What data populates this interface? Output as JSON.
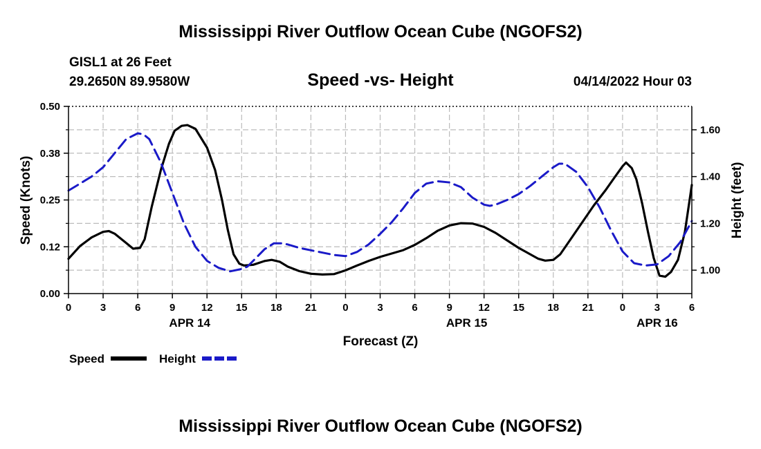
{
  "title": "Mississippi River Outflow Ocean Cube (NGOFS2)",
  "station": "GISL1 at 26 Feet",
  "coords": "29.2650N  89.9580W",
  "datetime": "04/14/2022 Hour 03",
  "footer_title": "Mississippi River Outflow Ocean Cube (NGOFS2)",
  "legend": {
    "speed": "Speed",
    "height": "Height"
  },
  "chart_data": {
    "type": "line",
    "title": "Speed -vs- Height",
    "xlabel": "Forecast (Z)",
    "ylabel": "Speed (Knots)",
    "y2label": "Height (feet)",
    "xlim": [
      0,
      54
    ],
    "ylim": [
      0,
      0.5
    ],
    "y2lim": [
      0.9,
      1.7
    ],
    "grid": true,
    "x_ticks": [
      {
        "x": 0,
        "label": "0"
      },
      {
        "x": 3,
        "label": "3"
      },
      {
        "x": 6,
        "label": "6"
      },
      {
        "x": 9,
        "label": "9"
      },
      {
        "x": 12,
        "label": "12"
      },
      {
        "x": 15,
        "label": "15"
      },
      {
        "x": 18,
        "label": "18"
      },
      {
        "x": 21,
        "label": "21"
      },
      {
        "x": 24,
        "label": "0"
      },
      {
        "x": 27,
        "label": "3"
      },
      {
        "x": 30,
        "label": "6"
      },
      {
        "x": 33,
        "label": "9"
      },
      {
        "x": 36,
        "label": "12"
      },
      {
        "x": 39,
        "label": "15"
      },
      {
        "x": 42,
        "label": "18"
      },
      {
        "x": 45,
        "label": "21"
      },
      {
        "x": 48,
        "label": "0"
      },
      {
        "x": 51,
        "label": "3"
      },
      {
        "x": 54,
        "label": "6"
      }
    ],
    "date_labels": [
      {
        "x": 10.5,
        "label": "APR 14"
      },
      {
        "x": 34.5,
        "label": "APR 15"
      },
      {
        "x": 51,
        "label": "APR 16"
      }
    ],
    "y_ticks": [
      {
        "v": 0.0,
        "label": "0.00"
      },
      {
        "v": 0.125,
        "label": "0.12"
      },
      {
        "v": 0.25,
        "label": "0.25"
      },
      {
        "v": 0.375,
        "label": "0.38"
      },
      {
        "v": 0.5,
        "label": "0.50"
      }
    ],
    "y2_ticks": [
      {
        "v": 1.0,
        "label": "1.00"
      },
      {
        "v": 1.2,
        "label": "1.20"
      },
      {
        "v": 1.4,
        "label": "1.40"
      },
      {
        "v": 1.6,
        "label": "1.60"
      }
    ],
    "series": [
      {
        "name": "Speed",
        "color": "#000000",
        "axis": "left",
        "dash": "none",
        "points": [
          [
            0,
            0.093
          ],
          [
            1,
            0.127
          ],
          [
            2,
            0.15
          ],
          [
            3,
            0.165
          ],
          [
            3.5,
            0.167
          ],
          [
            4,
            0.16
          ],
          [
            5,
            0.135
          ],
          [
            5.6,
            0.12
          ],
          [
            6.2,
            0.122
          ],
          [
            6.6,
            0.145
          ],
          [
            7.2,
            0.23
          ],
          [
            8,
            0.33
          ],
          [
            8.7,
            0.4
          ],
          [
            9.2,
            0.435
          ],
          [
            9.8,
            0.448
          ],
          [
            10.3,
            0.45
          ],
          [
            11,
            0.44
          ],
          [
            12,
            0.39
          ],
          [
            12.7,
            0.33
          ],
          [
            13.3,
            0.25
          ],
          [
            13.8,
            0.17
          ],
          [
            14.3,
            0.105
          ],
          [
            14.8,
            0.08
          ],
          [
            15.2,
            0.075
          ],
          [
            16,
            0.077
          ],
          [
            17,
            0.087
          ],
          [
            17.6,
            0.09
          ],
          [
            18.3,
            0.085
          ],
          [
            19,
            0.072
          ],
          [
            20,
            0.06
          ],
          [
            21,
            0.053
          ],
          [
            22,
            0.051
          ],
          [
            23,
            0.052
          ],
          [
            24,
            0.062
          ],
          [
            25,
            0.075
          ],
          [
            26,
            0.087
          ],
          [
            27,
            0.098
          ],
          [
            28,
            0.107
          ],
          [
            29,
            0.116
          ],
          [
            30,
            0.13
          ],
          [
            31,
            0.148
          ],
          [
            32,
            0.168
          ],
          [
            33,
            0.182
          ],
          [
            34,
            0.188
          ],
          [
            35,
            0.187
          ],
          [
            36,
            0.178
          ],
          [
            37,
            0.162
          ],
          [
            38,
            0.142
          ],
          [
            39,
            0.122
          ],
          [
            40,
            0.105
          ],
          [
            40.7,
            0.093
          ],
          [
            41.3,
            0.088
          ],
          [
            42,
            0.09
          ],
          [
            42.6,
            0.105
          ],
          [
            43.5,
            0.145
          ],
          [
            44.5,
            0.19
          ],
          [
            45.5,
            0.235
          ],
          [
            46.5,
            0.275
          ],
          [
            47.3,
            0.31
          ],
          [
            48,
            0.34
          ],
          [
            48.3,
            0.35
          ],
          [
            48.8,
            0.335
          ],
          [
            49.2,
            0.305
          ],
          [
            49.7,
            0.24
          ],
          [
            50.2,
            0.165
          ],
          [
            50.7,
            0.095
          ],
          [
            51.2,
            0.048
          ],
          [
            51.7,
            0.045
          ],
          [
            52.2,
            0.058
          ],
          [
            52.8,
            0.09
          ],
          [
            53.4,
            0.165
          ],
          [
            54,
            0.29
          ]
        ]
      },
      {
        "name": "Height",
        "color": "#1a1ac8",
        "axis": "right",
        "dash": "16 8",
        "points": [
          [
            0,
            1.34
          ],
          [
            1,
            1.37
          ],
          [
            2,
            1.4
          ],
          [
            3,
            1.44
          ],
          [
            4,
            1.5
          ],
          [
            5,
            1.56
          ],
          [
            6,
            1.585
          ],
          [
            6.5,
            1.58
          ],
          [
            7,
            1.56
          ],
          [
            8,
            1.46
          ],
          [
            9,
            1.33
          ],
          [
            10,
            1.2
          ],
          [
            11,
            1.1
          ],
          [
            12,
            1.04
          ],
          [
            13,
            1.01
          ],
          [
            14,
            0.995
          ],
          [
            15,
            1.005
          ],
          [
            15.5,
            1.015
          ],
          [
            16,
            1.04
          ],
          [
            17,
            1.09
          ],
          [
            17.8,
            1.115
          ],
          [
            18.5,
            1.115
          ],
          [
            19,
            1.11
          ],
          [
            20,
            1.095
          ],
          [
            21,
            1.085
          ],
          [
            22,
            1.075
          ],
          [
            23,
            1.065
          ],
          [
            24,
            1.06
          ],
          [
            25,
            1.078
          ],
          [
            26,
            1.11
          ],
          [
            27,
            1.155
          ],
          [
            28,
            1.205
          ],
          [
            29,
            1.265
          ],
          [
            30,
            1.33
          ],
          [
            31,
            1.37
          ],
          [
            32,
            1.38
          ],
          [
            33,
            1.375
          ],
          [
            34,
            1.355
          ],
          [
            35,
            1.31
          ],
          [
            36,
            1.28
          ],
          [
            36.5,
            1.275
          ],
          [
            37,
            1.28
          ],
          [
            38,
            1.3
          ],
          [
            39,
            1.325
          ],
          [
            40,
            1.36
          ],
          [
            41,
            1.4
          ],
          [
            42,
            1.44
          ],
          [
            42.5,
            1.455
          ],
          [
            43,
            1.455
          ],
          [
            44,
            1.42
          ],
          [
            45,
            1.355
          ],
          [
            46,
            1.27
          ],
          [
            47,
            1.17
          ],
          [
            48,
            1.08
          ],
          [
            49,
            1.03
          ],
          [
            50,
            1.02
          ],
          [
            51,
            1.025
          ],
          [
            52,
            1.06
          ],
          [
            53,
            1.12
          ],
          [
            54,
            1.21
          ]
        ]
      }
    ]
  }
}
